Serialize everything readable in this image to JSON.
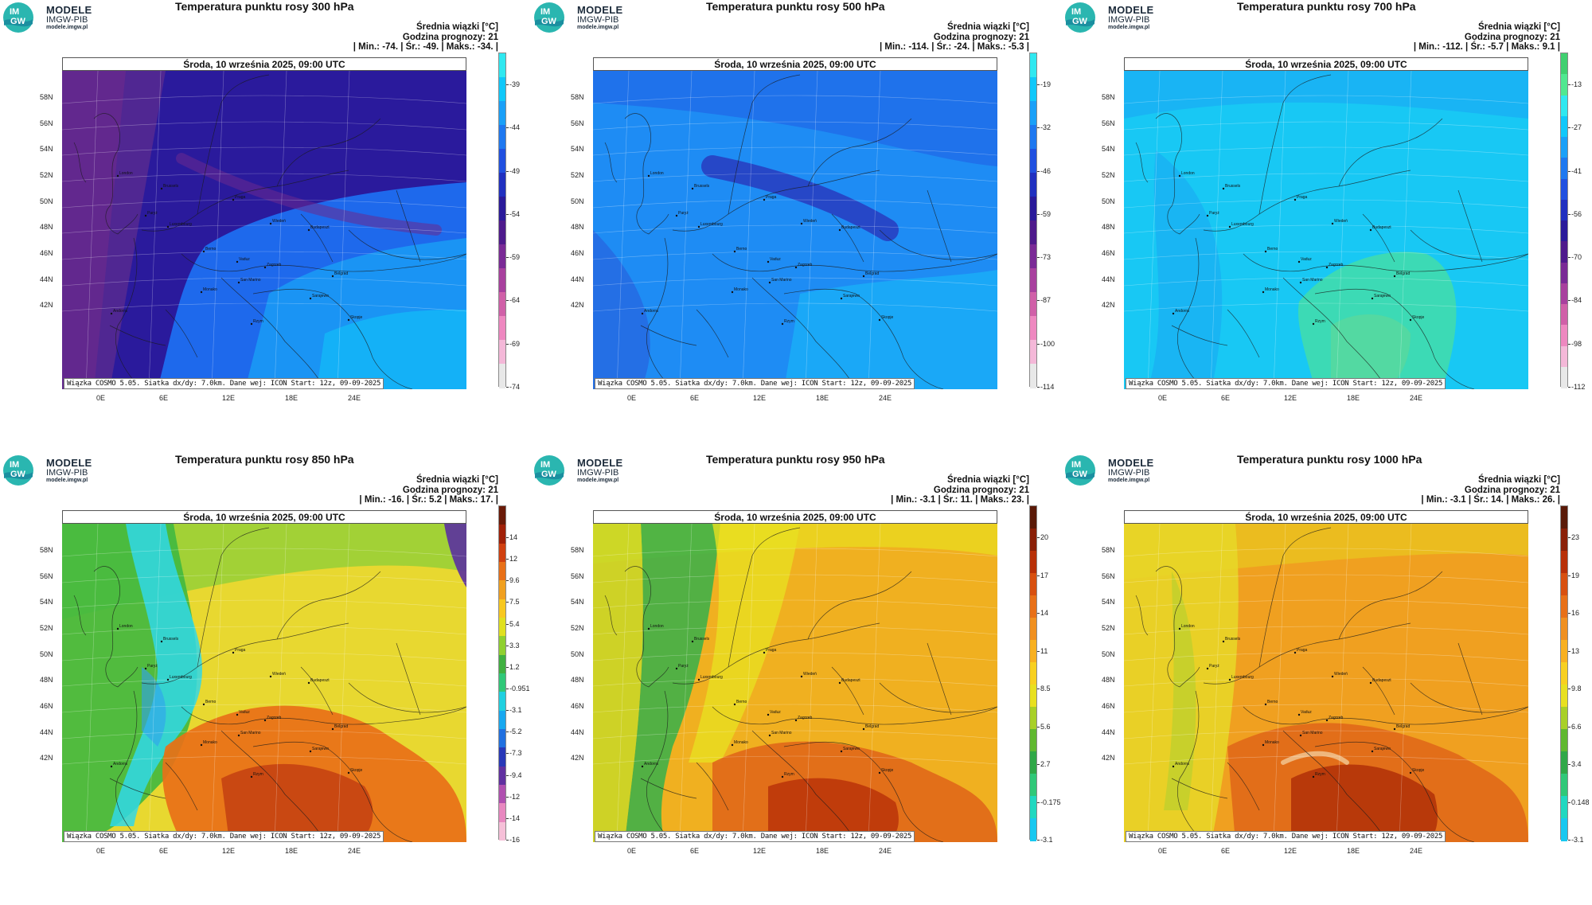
{
  "logo": {
    "text": "MODELE",
    "org": "IMGW-PIB",
    "url": "modele.imgw.pl",
    "mark_top": "IM",
    "mark_bottom": "GW"
  },
  "date": "Środa, 10 września 2025, 09:00 UTC",
  "footer": "Wiązka COSMO 5.05. Siatka dx/dy: 7.0km. Dane wej: ICON Start: 12z, 09-09-2025",
  "lat_labels": [
    "58N",
    "56N",
    "54N",
    "52N",
    "50N",
    "48N",
    "46N",
    "44N",
    "42N"
  ],
  "lon_labels": [
    "0E",
    "6E",
    "12E",
    "18E",
    "24E"
  ],
  "cities": [
    "London",
    "Brussels",
    "Paryż",
    "Luxembourg",
    "Praga",
    "Wiedeń",
    "Budapeszt",
    "Berno",
    "Vaduz",
    "Zagrzeb",
    "Belgrad",
    "San Marino",
    "Sarajewo",
    "Monako",
    "Andorra",
    "Rzym",
    "Skopje"
  ],
  "panels": [
    {
      "title": "Temperatura punktu rosy 300 hPa",
      "line1": "Średnia wiązki [°C]",
      "line2": "Godzina prognozy: 21",
      "line3": "| Min.:    -74. | Śr.:    -49. | Maks.:    -34. |",
      "scale_colors": [
        "#e8e8e8",
        "#f4b8d8",
        "#ee88c0",
        "#d060a8",
        "#a8409e",
        "#7a2a96",
        "#4e1a8c",
        "#2a1a9a",
        "#2030c0",
        "#2050e0",
        "#1e78f0",
        "#1aa0f8",
        "#10c8fa",
        "#30e8f0"
      ],
      "scale_labels": [
        "-39",
        "-44",
        "-49",
        "-54",
        "-59",
        "-64",
        "-69",
        "-74"
      ]
    },
    {
      "title": "Temperatura punktu rosy 500 hPa",
      "line1": "Średnia wiązki [°C]",
      "line2": "Godzina prognozy: 21",
      "line3": "| Min.:   -114. | Śr.:    -24. | Maks.:   -5.3 |",
      "scale_colors": [
        "#e8e8e8",
        "#f4b8d8",
        "#ee88c0",
        "#d060a8",
        "#a8409e",
        "#7a2a96",
        "#4e1a8c",
        "#2a1a9a",
        "#2030c0",
        "#2050e0",
        "#1e78f0",
        "#1aa0f8",
        "#10c8fa",
        "#30e8f0"
      ],
      "scale_labels": [
        "-19",
        "-32",
        "-46",
        "-59",
        "-73",
        "-87",
        "-100",
        "-114"
      ]
    },
    {
      "title": "Temperatura punktu rosy 700 hPa",
      "line1": "Średnia wiązki [°C]",
      "line2": "Godzina prognozy: 21",
      "line3": "| Min.:   -112. | Śr.:   -5.7 | Maks.:    9.1 |",
      "scale_colors": [
        "#e8e8e8",
        "#f4b8d8",
        "#ee88c0",
        "#d060a8",
        "#a8409e",
        "#7a2a96",
        "#4e1a8c",
        "#2a1a9a",
        "#2030c0",
        "#2050e0",
        "#1e78f0",
        "#1aa0f8",
        "#10c8fa",
        "#30e8f0",
        "#50e890",
        "#40d070"
      ],
      "scale_labels": [
        "-13",
        "-27",
        "-41",
        "-56",
        "-70",
        "-84",
        "-98",
        "-112"
      ]
    },
    {
      "title": "Temperatura punktu rosy 850 hPa",
      "line1": "Średnia wiązki [°C]",
      "line2": "Godzina prognozy: 21",
      "line3": "| Min.:    -16. | Śr.:    5.2 | Maks.:    17. |",
      "scale_colors": [
        "#f6c0d8",
        "#e888c0",
        "#b050b0",
        "#6030a0",
        "#2838b8",
        "#2070e0",
        "#18a8f0",
        "#20d0e0",
        "#30c878",
        "#40b040",
        "#90d030",
        "#e0e020",
        "#f8c820",
        "#f0a020",
        "#e87018",
        "#d04010",
        "#a02008",
        "#6a1a08"
      ],
      "scale_labels": [
        "14",
        "12",
        "9.6",
        "7.5",
        "5.4",
        "3.3",
        "1.2",
        "-0.951",
        "-3.1",
        "-5.2",
        "-7.3",
        "-9.4",
        "-12",
        "-14",
        "-16"
      ]
    },
    {
      "title": "Temperatura punktu rosy 950 hPa",
      "line1": "Średnia wiązki [°C]",
      "line2": "Godzina prognozy: 21",
      "line3": "| Min.:   -3.1 | Śr.:    11. | Maks.:    23. |",
      "scale_colors": [
        "#18c8f0",
        "#20d8c0",
        "#30c878",
        "#30a848",
        "#60b830",
        "#a8d028",
        "#e8e020",
        "#f8d020",
        "#f8b020",
        "#f09020",
        "#e87018",
        "#d85010",
        "#b83008",
        "#8a2008",
        "#5a1a08"
      ],
      "scale_labels": [
        "20",
        "17",
        "14",
        "11",
        "8.5",
        "5.6",
        "2.7",
        "-0.175",
        "-3.1"
      ]
    },
    {
      "title": "Temperatura punktu rosy 1000 hPa",
      "line1": "Średnia wiązki [°C]",
      "line2": "Godzina prognozy: 21",
      "line3": "| Min.:   -3.1 | Śr.:    14. | Maks.:    26. |",
      "scale_colors": [
        "#18c8f0",
        "#20d8c0",
        "#30c878",
        "#30a848",
        "#60b830",
        "#a8d028",
        "#e8e020",
        "#f8d020",
        "#f8b020",
        "#f09020",
        "#e87018",
        "#d85010",
        "#b83008",
        "#8a2008",
        "#5a1a08"
      ],
      "scale_labels": [
        "23",
        "19",
        "16",
        "13",
        "9.8",
        "6.6",
        "3.4",
        "0.148",
        "-3.1"
      ]
    }
  ]
}
